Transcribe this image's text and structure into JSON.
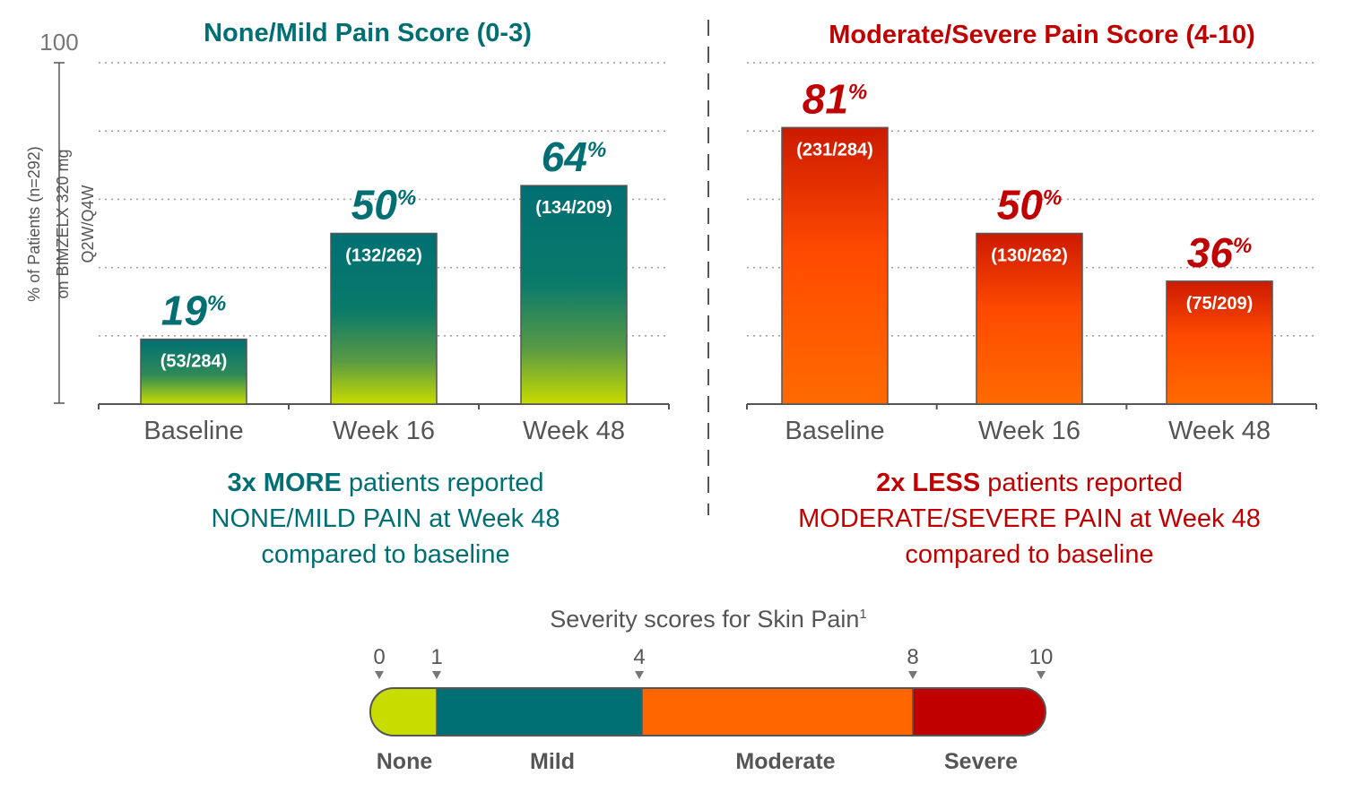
{
  "y_axis": {
    "max_label": "100",
    "title_line1": "% of Patients (n=292)",
    "title_line2": "on BIMZELX 320 mg",
    "title_line3": "Q2W/Q4W"
  },
  "chart_data": [
    {
      "type": "bar",
      "title": "None/Mild Pain Score (0-3)",
      "categories": [
        "Baseline",
        "Week 16",
        "Week 48"
      ],
      "values": [
        19,
        50,
        64
      ],
      "value_labels": [
        "19",
        "50",
        "64"
      ],
      "percent_sign": "%",
      "counts": [
        "(53/284)",
        "(132/262)",
        "(134/209)"
      ],
      "ylim": [
        0,
        100
      ],
      "gridlines": [
        20,
        40,
        60,
        80,
        100
      ],
      "color": "#006f73",
      "summary": {
        "bold": "3x MORE",
        "line1_rest": " patients reported",
        "line2": "NONE/MILD PAIN at Week 48",
        "line3": "compared to baseline"
      }
    },
    {
      "type": "bar",
      "title": "Moderate/Severe Pain Score (4-10)",
      "categories": [
        "Baseline",
        "Week 16",
        "Week 48"
      ],
      "values": [
        81,
        50,
        36
      ],
      "value_labels": [
        "81",
        "50",
        "36"
      ],
      "percent_sign": "%",
      "counts": [
        "(231/284)",
        "(130/262)",
        "(75/209)"
      ],
      "ylim": [
        0,
        100
      ],
      "gridlines": [
        20,
        40,
        60,
        80,
        100
      ],
      "color": "#c00000",
      "summary": {
        "bold": "2x LESS",
        "line1_rest": " patients reported",
        "line2": "MODERATE/SEVERE PAIN at Week 48",
        "line3": "compared to baseline"
      }
    }
  ],
  "severity_scale": {
    "title": "Severity scores for Skin Pain",
    "title_superscript": "1",
    "ticks": [
      {
        "label": "0",
        "value": 0
      },
      {
        "label": "1",
        "value": 1
      },
      {
        "label": "4",
        "value": 4
      },
      {
        "label": "8",
        "value": 8
      },
      {
        "label": "10",
        "value": 10
      }
    ],
    "segments": [
      {
        "label": "None",
        "color": "#c8dc00"
      },
      {
        "label": "Mild",
        "color": "#006f73"
      },
      {
        "label": "Moderate",
        "color": "#ff6600"
      },
      {
        "label": "Severe",
        "color": "#c00000"
      }
    ]
  },
  "colors": {
    "teal": "#006f73",
    "red": "#c00000",
    "orange": "#ff6600",
    "lime": "#c8dc00",
    "axis": "#555555",
    "grid": "#9a9a9a"
  }
}
